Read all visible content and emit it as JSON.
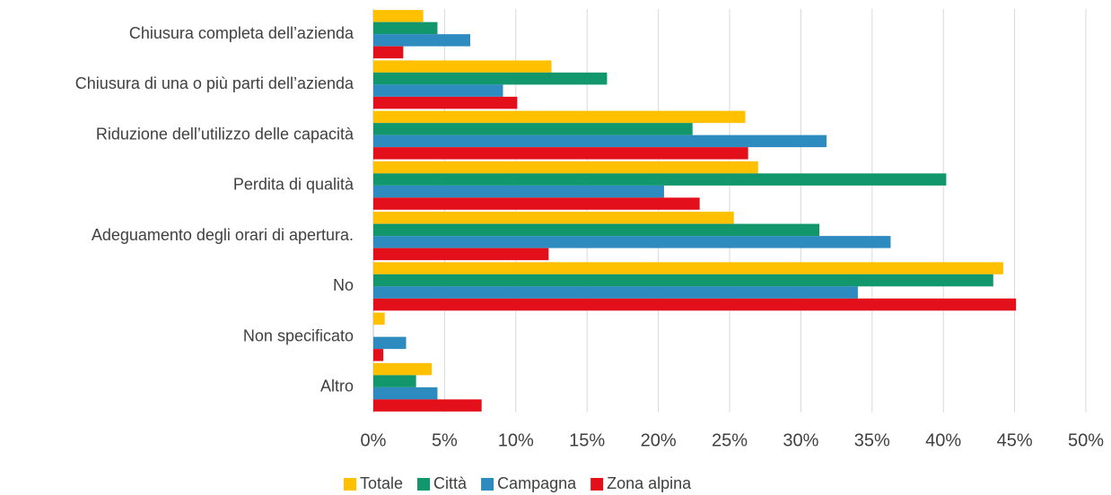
{
  "chart_data": {
    "type": "hbar",
    "categories": [
      "Chiusura completa dell’azienda",
      "Chiusura di una o più parti dell’azienda",
      "Riduzione dell’utilizzo delle capacità",
      "Perdita di qualità",
      "Adeguamento degli orari di apertura.",
      "No",
      "Non specificato",
      "Altro"
    ],
    "series": [
      {
        "name": "Totale",
        "color": "#ffc000",
        "values": [
          3.5,
          12.5,
          26.1,
          27.0,
          25.3,
          44.2,
          0.8,
          4.1
        ]
      },
      {
        "name": "Città",
        "color": "#12966c",
        "values": [
          4.5,
          16.4,
          22.4,
          40.2,
          31.3,
          43.5,
          0,
          3.0
        ]
      },
      {
        "name": "Campagna",
        "color": "#2e8bc0",
        "values": [
          6.8,
          9.1,
          31.8,
          20.4,
          36.3,
          34.0,
          2.3,
          4.5
        ]
      },
      {
        "name": "Zona alpina",
        "color": "#e3101b",
        "values": [
          2.1,
          10.1,
          26.3,
          22.9,
          12.3,
          45.1,
          0.7,
          7.6
        ]
      }
    ],
    "xlim": [
      0,
      50
    ],
    "xticks": [
      {
        "value": 0,
        "label": "0%"
      },
      {
        "value": 5,
        "label": "5%"
      },
      {
        "value": 10,
        "label": "10%"
      },
      {
        "value": 15,
        "label": "15%"
      },
      {
        "value": 20,
        "label": "20%"
      },
      {
        "value": 25,
        "label": "25%"
      },
      {
        "value": 30,
        "label": "30%"
      },
      {
        "value": 35,
        "label": "35%"
      },
      {
        "value": 40,
        "label": "40%"
      },
      {
        "value": 45,
        "label": "45%"
      },
      {
        "value": 50,
        "label": "50%"
      }
    ],
    "grid": true,
    "legend": "bottom"
  }
}
